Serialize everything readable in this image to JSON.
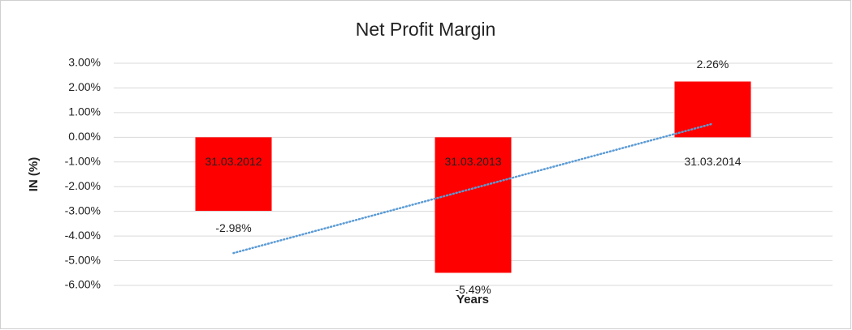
{
  "chart_data": {
    "type": "bar",
    "title": "Net Profit Margin",
    "x_label": "Years",
    "y_label": "IN (%)",
    "categories": [
      "31.03.2012",
      "31.03.2013",
      "31.03.2014"
    ],
    "values": [
      -2.98,
      -5.49,
      2.26
    ],
    "value_labels": [
      "-2.98%",
      "-5.49%",
      "2.26%"
    ],
    "color": "#ff0000",
    "ylim": [
      -6,
      3
    ],
    "yticks": [
      {
        "value": 3,
        "label": "3.00%"
      },
      {
        "value": 2,
        "label": "2.00%"
      },
      {
        "value": 1,
        "label": "1.00%"
      },
      {
        "value": 0,
        "label": "0.00%"
      },
      {
        "value": -1,
        "label": "-1.00%"
      },
      {
        "value": -2,
        "label": "-2.00%"
      },
      {
        "value": -3,
        "label": "-3.00%"
      },
      {
        "value": -4,
        "label": "-4.00%"
      },
      {
        "value": -5,
        "label": "-5.00%"
      },
      {
        "value": -6,
        "label": "-6.00%"
      }
    ],
    "grid": true,
    "trendline": {
      "type": "linear",
      "color": "#5b9bd5"
    }
  }
}
